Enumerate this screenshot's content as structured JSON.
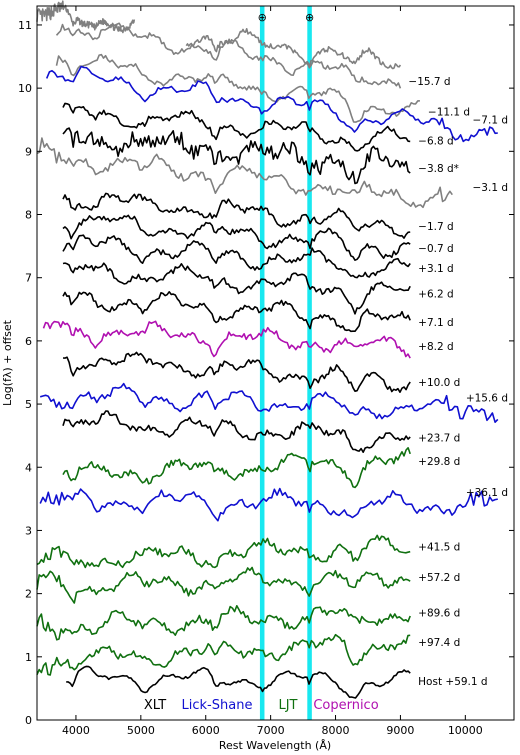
{
  "chart_data": {
    "type": "line",
    "xlabel": "Rest Wavelength (Å)",
    "ylabel": "Log(fλ) + offset",
    "xlim": [
      3400,
      10750
    ],
    "ylim": [
      0,
      11.3
    ],
    "xticks": [
      4000,
      5000,
      6000,
      7000,
      8000,
      9000,
      10000
    ],
    "yticks": [
      0,
      1,
      2,
      3,
      4,
      5,
      6,
      7,
      8,
      9,
      10,
      11
    ],
    "telluric_bands": [
      {
        "center": 6870,
        "width": 70,
        "symbol": "⊕",
        "color": "#00e5ee"
      },
      {
        "center": 7600,
        "width": 70,
        "symbol": "⊕",
        "color": "#00e5ee"
      }
    ],
    "instruments": [
      {
        "name": "XLT",
        "color": "#000000"
      },
      {
        "name": "Lick-Shane",
        "color": "#1010d0"
      },
      {
        "name": "LJT",
        "color": "#107010"
      },
      {
        "name": "Copernico",
        "color": "#b010b0"
      }
    ],
    "series": [
      {
        "name": "",
        "color": "#808080",
        "x0": 3400,
        "x1": 4900,
        "offset": 10.95,
        "tilt": -0.25,
        "noise": 0.1
      },
      {
        "name": "",
        "color": "#808080",
        "x0": 5700,
        "x1": 9000,
        "offset": 10.75,
        "tilt": -0.55,
        "noise": 0.08
      },
      {
        "name": "−15.7 d",
        "color": "#808080",
        "x0": 3700,
        "x1": 9000,
        "offset": 10.55,
        "tilt": -0.7,
        "noise": 0.08
      },
      {
        "name": "−11.1 d",
        "color": "#808080",
        "x0": 3700,
        "x1": 9300,
        "offset": 10.05,
        "tilt": -0.6,
        "noise": 0.07
      },
      {
        "name": "−7.1 d",
        "color": "#1010d0",
        "x0": 3550,
        "x1": 10500,
        "offset": 9.85,
        "tilt": -0.55,
        "noise": 0.07
      },
      {
        "name": "−6.8 d",
        "color": "#000000",
        "x0": 3800,
        "x1": 9150,
        "offset": 9.4,
        "tilt": -0.35,
        "noise": 0.08
      },
      {
        "name": "−3.8 d*",
        "color": "#000000",
        "x0": 3800,
        "x1": 9150,
        "offset": 9.0,
        "tilt": -0.4,
        "noise": 0.25
      },
      {
        "name": "−3.1 d",
        "color": "#808080",
        "x0": 3400,
        "x1": 9800,
        "offset": 8.6,
        "tilt": -0.45,
        "noise": 0.12
      },
      {
        "name": "−1.7 d",
        "color": "#000000",
        "x0": 3800,
        "x1": 9150,
        "offset": 8.05,
        "tilt": -0.35,
        "noise": 0.09
      },
      {
        "name": "−0.7 d",
        "color": "#000000",
        "x0": 3800,
        "x1": 9150,
        "offset": 7.7,
        "tilt": -0.35,
        "noise": 0.09
      },
      {
        "name": "+3.1 d",
        "color": "#000000",
        "x0": 3800,
        "x1": 9150,
        "offset": 7.35,
        "tilt": -0.3,
        "noise": 0.09
      },
      {
        "name": "+6.2 d",
        "color": "#000000",
        "x0": 3800,
        "x1": 9150,
        "offset": 6.95,
        "tilt": -0.3,
        "noise": 0.09
      },
      {
        "name": "+7.1 d",
        "color": "#000000",
        "x0": 3800,
        "x1": 9150,
        "offset": 6.5,
        "tilt": -0.3,
        "noise": 0.09
      },
      {
        "name": "+8.2 d",
        "color": "#b010b0",
        "x0": 3500,
        "x1": 9150,
        "offset": 6.05,
        "tilt": -0.2,
        "noise": 0.09
      },
      {
        "name": "+10.0 d",
        "color": "#000000",
        "x0": 3800,
        "x1": 9150,
        "offset": 5.55,
        "tilt": -0.3,
        "noise": 0.09
      },
      {
        "name": "+15.6 d",
        "color": "#1010d0",
        "x0": 3450,
        "x1": 10500,
        "offset": 5.05,
        "tilt": -0.15,
        "noise": 0.1
      },
      {
        "name": "+23.7 d",
        "color": "#000000",
        "x0": 3800,
        "x1": 9150,
        "offset": 4.6,
        "tilt": -0.2,
        "noise": 0.09
      },
      {
        "name": "+29.8 d",
        "color": "#107010",
        "x0": 3800,
        "x1": 9150,
        "offset": 4.0,
        "tilt": 0.15,
        "noise": 0.11
      },
      {
        "name": "+36.1 d",
        "color": "#1010d0",
        "x0": 3450,
        "x1": 10500,
        "offset": 3.45,
        "tilt": -0.05,
        "noise": 0.11
      },
      {
        "name": "+41.5 d",
        "color": "#107010",
        "x0": 3400,
        "x1": 9150,
        "offset": 2.65,
        "tilt": 0.15,
        "noise": 0.11
      },
      {
        "name": "+57.2 d",
        "color": "#107010",
        "x0": 3400,
        "x1": 9150,
        "offset": 2.2,
        "tilt": 0.1,
        "noise": 0.11
      },
      {
        "name": "+89.6 d",
        "color": "#107010",
        "x0": 3400,
        "x1": 9150,
        "offset": 1.6,
        "tilt": 0.15,
        "noise": 0.11
      },
      {
        "name": "+97.4 d",
        "color": "#107010",
        "x0": 3400,
        "x1": 9150,
        "offset": 1.1,
        "tilt": 0.2,
        "noise": 0.12
      },
      {
        "name": "Host +59.1 d",
        "color": "#000000",
        "x0": 3850,
        "x1": 9150,
        "offset": 0.65,
        "tilt": -0.05,
        "noise": 0.04
      }
    ],
    "grid": false,
    "legend": "bottom"
  }
}
